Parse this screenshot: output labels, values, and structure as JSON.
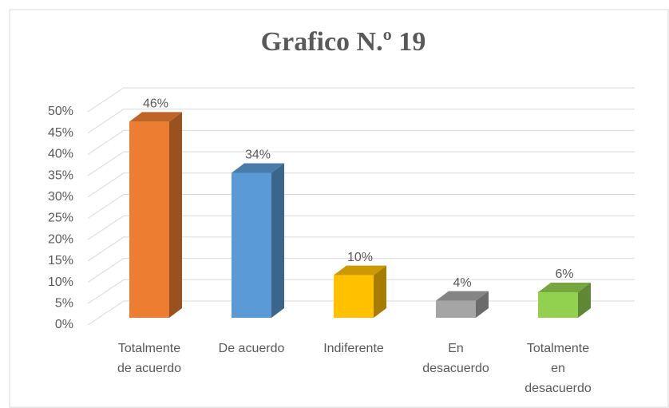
{
  "chart_data": {
    "type": "bar3d",
    "title": "Grafico N.º 19",
    "categories": [
      "Totalmente de acuerdo",
      "De acuerdo",
      "Indiferente",
      "En desacuerdo",
      "Totalmente en desacuerdo"
    ],
    "values": [
      46,
      34,
      10,
      4,
      6
    ],
    "value_labels": [
      "46%",
      "34%",
      "10%",
      "4%",
      "6%"
    ],
    "colors": [
      "#ed7d31",
      "#5b9bd5",
      "#ffc000",
      "#a5a5a5",
      "#92d050"
    ],
    "ylim": [
      0,
      50
    ],
    "yticks": [
      {
        "value": 0,
        "label": "0%"
      },
      {
        "value": 5,
        "label": "5%"
      },
      {
        "value": 10,
        "label": "10%"
      },
      {
        "value": 15,
        "label": "15%"
      },
      {
        "value": 20,
        "label": "20%"
      },
      {
        "value": 25,
        "label": "25%"
      },
      {
        "value": 30,
        "label": "30%"
      },
      {
        "value": 35,
        "label": "35%"
      },
      {
        "value": 40,
        "label": "40%"
      },
      {
        "value": 45,
        "label": "45%"
      },
      {
        "value": 50,
        "label": "50%"
      }
    ],
    "grid": true
  }
}
